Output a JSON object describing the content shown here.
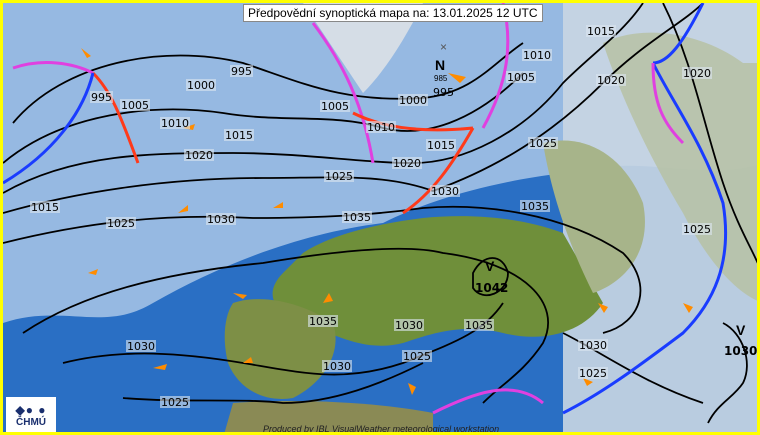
{
  "title": "Předpovědní synoptická mapa na: 13.01.2025 12 UTC",
  "logo": {
    "symbol": "◆● ●",
    "text": "ČHMÚ"
  },
  "credit": "Produced by IBL VisualWeather meteorological workstation",
  "colors": {
    "border": "#ffff00",
    "sea": "#2a6fc4",
    "shallow": "#a9c7e8",
    "land": "#6f8f3a",
    "cold_front": "#1a3cff",
    "warm_front": "#ff3a1a",
    "occluded_front": "#e040e0",
    "wind_arrow": "#ff8c00",
    "isobar": "#000000"
  },
  "pressure_centers": [
    {
      "type": "low",
      "letter": "N",
      "value": "985",
      "secondary": "995"
    },
    {
      "type": "high",
      "letter": "V",
      "value": "1042"
    },
    {
      "type": "high",
      "letter": "V",
      "value": "1030"
    }
  ],
  "isobar_labels": [
    "995",
    "1000",
    "995",
    "1005",
    "1010",
    "1015",
    "1020",
    "1015",
    "1025",
    "1030",
    "1035",
    "1025",
    "1030",
    "1020",
    "1015",
    "1010",
    "1005",
    "1000",
    "1010",
    "1005",
    "1015",
    "1020",
    "1020",
    "1025",
    "1035",
    "1025",
    "1030",
    "1025",
    "1030",
    "1035",
    "1030",
    "1035",
    "1025",
    "1030",
    "1025"
  ]
}
